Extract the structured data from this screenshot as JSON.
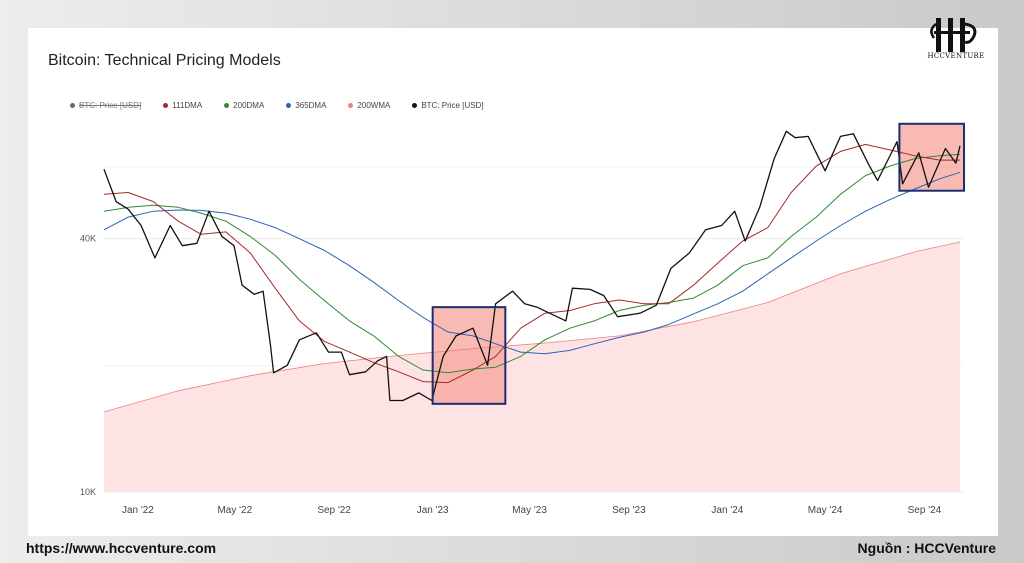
{
  "header": {
    "brand": "HCCVENTURE"
  },
  "footer": {
    "website": "https://www.hccventure.com",
    "source": "Nguồn : HCCVenture"
  },
  "chart_data": {
    "type": "line",
    "title": "Bitcoin: Technical Pricing Models",
    "y_scale": "log",
    "ylim": [
      10000,
      80000
    ],
    "y_ticks": [
      {
        "value": 40000,
        "label": "40K"
      },
      {
        "value": 10000,
        "label": "10K"
      }
    ],
    "x_ticks": [
      {
        "date": "2022-01-01",
        "label": "Jan '22"
      },
      {
        "date": "2022-05-01",
        "label": "May '22"
      },
      {
        "date": "2022-09-01",
        "label": "Sep '22"
      },
      {
        "date": "2023-01-01",
        "label": "Jan '23"
      },
      {
        "date": "2023-05-01",
        "label": "May '23"
      },
      {
        "date": "2023-09-01",
        "label": "Sep '23"
      },
      {
        "date": "2024-01-01",
        "label": "Jan '24"
      },
      {
        "date": "2024-05-01",
        "label": "May '24"
      },
      {
        "date": "2024-09-01",
        "label": "Sep '24"
      }
    ],
    "xlim": [
      "2021-11-20",
      "2024-10-20"
    ],
    "grid": true,
    "legend_position": "top-left",
    "legend": [
      {
        "label": "BTC: Price [USD]",
        "color": "#6b6b6b",
        "struck": true
      },
      {
        "label": "111DMA",
        "color": "#a52a2a",
        "struck": false
      },
      {
        "label": "200DMA",
        "color": "#2e8b2e",
        "struck": false
      },
      {
        "label": "365DMA",
        "color": "#2b63b5",
        "struck": false
      },
      {
        "label": "200WMA",
        "color": "#f08080",
        "struck": false
      },
      {
        "label": "BTC: Price [USD]",
        "color": "#111111",
        "struck": false
      }
    ],
    "series": [
      {
        "name": "BTC: Price [USD]",
        "color": "#111111",
        "points": [
          [
            "2021-11-20",
            58500
          ],
          [
            "2021-12-05",
            49000
          ],
          [
            "2021-12-20",
            47000
          ],
          [
            "2022-01-05",
            43000
          ],
          [
            "2022-01-22",
            36000
          ],
          [
            "2022-02-10",
            43000
          ],
          [
            "2022-02-25",
            38500
          ],
          [
            "2022-03-15",
            39000
          ],
          [
            "2022-03-30",
            46500
          ],
          [
            "2022-04-15",
            40500
          ],
          [
            "2022-04-30",
            38500
          ],
          [
            "2022-05-10",
            31000
          ],
          [
            "2022-05-25",
            29500
          ],
          [
            "2022-06-05",
            30000
          ],
          [
            "2022-06-14",
            22500
          ],
          [
            "2022-06-18",
            19200
          ],
          [
            "2022-07-05",
            20000
          ],
          [
            "2022-07-20",
            23000
          ],
          [
            "2022-08-10",
            23900
          ],
          [
            "2022-08-25",
            21500
          ],
          [
            "2022-09-10",
            21500
          ],
          [
            "2022-09-20",
            19000
          ],
          [
            "2022-10-10",
            19300
          ],
          [
            "2022-10-25",
            20500
          ],
          [
            "2022-11-05",
            21000
          ],
          [
            "2022-11-09",
            16500
          ],
          [
            "2022-11-25",
            16500
          ],
          [
            "2022-12-15",
            17200
          ],
          [
            "2022-12-31",
            16500
          ],
          [
            "2023-01-14",
            21000
          ],
          [
            "2023-01-30",
            23500
          ],
          [
            "2023-02-20",
            24500
          ],
          [
            "2023-03-10",
            20000
          ],
          [
            "2023-03-20",
            28000
          ],
          [
            "2023-04-10",
            30000
          ],
          [
            "2023-04-25",
            28000
          ],
          [
            "2023-05-10",
            27500
          ],
          [
            "2023-06-15",
            25500
          ],
          [
            "2023-06-23",
            30500
          ],
          [
            "2023-07-15",
            30300
          ],
          [
            "2023-08-01",
            29300
          ],
          [
            "2023-08-18",
            26100
          ],
          [
            "2023-09-15",
            26600
          ],
          [
            "2023-10-05",
            27800
          ],
          [
            "2023-10-23",
            34000
          ],
          [
            "2023-11-15",
            37000
          ],
          [
            "2023-12-05",
            42000
          ],
          [
            "2023-12-25",
            43000
          ],
          [
            "2024-01-10",
            46500
          ],
          [
            "2024-01-23",
            39500
          ],
          [
            "2024-02-10",
            47500
          ],
          [
            "2024-02-28",
            62000
          ],
          [
            "2024-03-14",
            72000
          ],
          [
            "2024-03-25",
            69500
          ],
          [
            "2024-04-10",
            70000
          ],
          [
            "2024-04-20",
            64000
          ],
          [
            "2024-05-01",
            58000
          ],
          [
            "2024-05-20",
            70000
          ],
          [
            "2024-06-05",
            71000
          ],
          [
            "2024-06-24",
            60000
          ],
          [
            "2024-07-05",
            55000
          ],
          [
            "2024-07-29",
            68000
          ],
          [
            "2024-08-05",
            54000
          ],
          [
            "2024-08-25",
            64000
          ],
          [
            "2024-09-06",
            53000
          ],
          [
            "2024-09-27",
            65500
          ],
          [
            "2024-10-10",
            60500
          ],
          [
            "2024-10-15",
            66500
          ]
        ]
      },
      {
        "name": "111DMA",
        "color": "#a52a2a",
        "points": [
          [
            "2021-11-20",
            51000
          ],
          [
            "2021-12-20",
            51500
          ],
          [
            "2022-01-20",
            49000
          ],
          [
            "2022-02-20",
            44000
          ],
          [
            "2022-03-20",
            41000
          ],
          [
            "2022-04-20",
            41500
          ],
          [
            "2022-05-20",
            37000
          ],
          [
            "2022-06-20",
            30500
          ],
          [
            "2022-07-20",
            25500
          ],
          [
            "2022-08-20",
            22800
          ],
          [
            "2022-09-20",
            21500
          ],
          [
            "2022-10-20",
            20300
          ],
          [
            "2022-11-20",
            19300
          ],
          [
            "2022-12-20",
            18300
          ],
          [
            "2023-01-20",
            18200
          ],
          [
            "2023-02-20",
            19500
          ],
          [
            "2023-03-20",
            21000
          ],
          [
            "2023-04-20",
            24500
          ],
          [
            "2023-05-20",
            26600
          ],
          [
            "2023-06-20",
            27000
          ],
          [
            "2023-07-20",
            28000
          ],
          [
            "2023-08-20",
            28600
          ],
          [
            "2023-09-20",
            28000
          ],
          [
            "2023-10-20",
            28000
          ],
          [
            "2023-11-20",
            31000
          ],
          [
            "2023-12-20",
            35000
          ],
          [
            "2024-01-20",
            39500
          ],
          [
            "2024-02-20",
            42500
          ],
          [
            "2024-03-20",
            51500
          ],
          [
            "2024-04-20",
            59500
          ],
          [
            "2024-05-20",
            64500
          ],
          [
            "2024-06-20",
            67000
          ],
          [
            "2024-07-20",
            65000
          ],
          [
            "2024-08-20",
            63000
          ],
          [
            "2024-09-20",
            61500
          ],
          [
            "2024-10-15",
            61500
          ]
        ]
      },
      {
        "name": "200DMA",
        "color": "#2e8b2e",
        "points": [
          [
            "2021-11-20",
            46500
          ],
          [
            "2021-12-20",
            47500
          ],
          [
            "2022-01-20",
            48000
          ],
          [
            "2022-02-20",
            47500
          ],
          [
            "2022-03-20",
            46000
          ],
          [
            "2022-04-20",
            44000
          ],
          [
            "2022-05-20",
            40500
          ],
          [
            "2022-06-20",
            36500
          ],
          [
            "2022-07-20",
            32000
          ],
          [
            "2022-08-20",
            28500
          ],
          [
            "2022-09-20",
            25500
          ],
          [
            "2022-10-20",
            23500
          ],
          [
            "2022-11-20",
            21000
          ],
          [
            "2022-12-20",
            19500
          ],
          [
            "2023-01-20",
            19200
          ],
          [
            "2023-02-20",
            19600
          ],
          [
            "2023-03-20",
            19800
          ],
          [
            "2023-04-20",
            21000
          ],
          [
            "2023-05-20",
            23000
          ],
          [
            "2023-06-20",
            24500
          ],
          [
            "2023-07-20",
            25500
          ],
          [
            "2023-08-20",
            27000
          ],
          [
            "2023-09-20",
            27800
          ],
          [
            "2023-10-20",
            28200
          ],
          [
            "2023-11-20",
            28900
          ],
          [
            "2023-12-20",
            31000
          ],
          [
            "2024-01-20",
            34500
          ],
          [
            "2024-02-20",
            36000
          ],
          [
            "2024-03-20",
            40500
          ],
          [
            "2024-04-20",
            45000
          ],
          [
            "2024-05-20",
            51000
          ],
          [
            "2024-06-20",
            56500
          ],
          [
            "2024-07-20",
            59500
          ],
          [
            "2024-08-20",
            62000
          ],
          [
            "2024-09-20",
            63000
          ],
          [
            "2024-10-15",
            63500
          ]
        ]
      },
      {
        "name": "365DMA",
        "color": "#2b63b5",
        "points": [
          [
            "2021-11-20",
            42000
          ],
          [
            "2021-12-20",
            45000
          ],
          [
            "2022-01-20",
            46500
          ],
          [
            "2022-02-20",
            46800
          ],
          [
            "2022-03-20",
            46700
          ],
          [
            "2022-04-20",
            46000
          ],
          [
            "2022-05-20",
            44500
          ],
          [
            "2022-06-20",
            42500
          ],
          [
            "2022-07-20",
            40000
          ],
          [
            "2022-08-20",
            37500
          ],
          [
            "2022-09-20",
            34500
          ],
          [
            "2022-10-20",
            31500
          ],
          [
            "2022-11-20",
            28500
          ],
          [
            "2022-12-20",
            26000
          ],
          [
            "2023-01-20",
            24000
          ],
          [
            "2023-02-20",
            23500
          ],
          [
            "2023-03-20",
            22500
          ],
          [
            "2023-04-20",
            21500
          ],
          [
            "2023-05-20",
            21300
          ],
          [
            "2023-06-20",
            21700
          ],
          [
            "2023-07-20",
            22500
          ],
          [
            "2023-08-20",
            23300
          ],
          [
            "2023-09-20",
            24000
          ],
          [
            "2023-10-20",
            25000
          ],
          [
            "2023-11-20",
            26500
          ],
          [
            "2023-12-20",
            28000
          ],
          [
            "2024-01-20",
            30000
          ],
          [
            "2024-02-20",
            33000
          ],
          [
            "2024-03-20",
            36000
          ],
          [
            "2024-04-20",
            39500
          ],
          [
            "2024-05-20",
            43000
          ],
          [
            "2024-06-20",
            46500
          ],
          [
            "2024-07-20",
            49500
          ],
          [
            "2024-08-20",
            52500
          ],
          [
            "2024-09-20",
            55500
          ],
          [
            "2024-10-15",
            57500
          ]
        ]
      },
      {
        "name": "200WMA",
        "color": "#f08080",
        "fill": "#fde3e3",
        "points": [
          [
            "2021-11-20",
            15500
          ],
          [
            "2022-02-20",
            17400
          ],
          [
            "2022-05-20",
            18900
          ],
          [
            "2022-08-20",
            20200
          ],
          [
            "2022-11-20",
            21100
          ],
          [
            "2023-02-20",
            21900
          ],
          [
            "2023-05-20",
            22600
          ],
          [
            "2023-08-20",
            23500
          ],
          [
            "2023-11-20",
            25400
          ],
          [
            "2024-02-20",
            28200
          ],
          [
            "2024-05-20",
            33000
          ],
          [
            "2024-08-20",
            37200
          ],
          [
            "2024-10-15",
            39300
          ]
        ]
      }
    ],
    "highlights": [
      {
        "start": "2023-01-01",
        "end": "2023-04-01",
        "y_top": 27500,
        "y_bottom": 16200
      },
      {
        "start": "2024-08-01",
        "end": "2024-10-20",
        "y_top": 75000,
        "y_bottom": 52000
      }
    ]
  }
}
